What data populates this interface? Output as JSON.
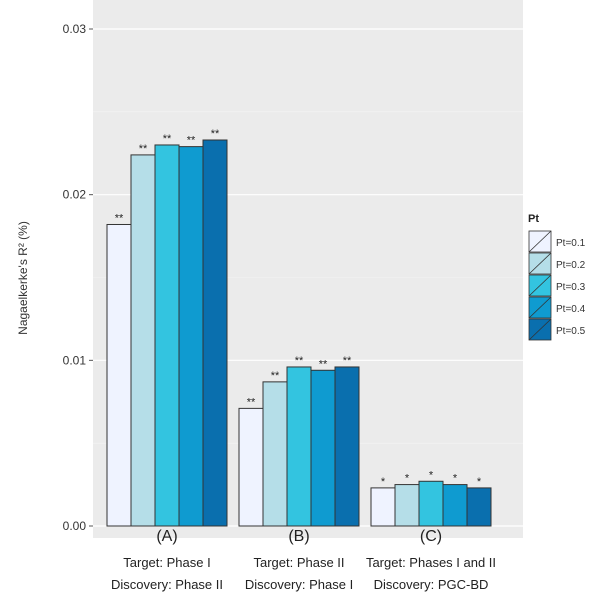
{
  "chart_data": {
    "type": "bar",
    "ylabel": "Nagaelkerke's R² (%)",
    "ylim": [
      0,
      0.031
    ],
    "yticks": [
      "0.00",
      "0.01",
      "0.02",
      "0.03"
    ],
    "ytick_values": [
      0,
      0.01,
      0.02,
      0.03
    ],
    "grid": true,
    "legend_position": "right",
    "categories": [
      {
        "letter": "(A)",
        "line1": "Target: Phase I",
        "line2": "Discovery: Phase II"
      },
      {
        "letter": "(B)",
        "line1": "Target: Phase II",
        "line2": "Discovery: Phase I"
      },
      {
        "letter": "(C)",
        "line1": "Target: Phases I and II",
        "line2": "Discovery: PGC-BD"
      }
    ],
    "legend_title": "Pt",
    "series": [
      {
        "name": "Pt=0.1",
        "color": "#eff3ff",
        "values": [
          0.0182,
          0.0071,
          0.0023
        ],
        "labels": [
          "**",
          "**",
          "*"
        ]
      },
      {
        "name": "Pt=0.2",
        "color": "#b5dee8",
        "values": [
          0.0224,
          0.0087,
          0.0025
        ],
        "labels": [
          "**",
          "**",
          "*"
        ]
      },
      {
        "name": "Pt=0.3",
        "color": "#33c4e0",
        "values": [
          0.023,
          0.0096,
          0.0027
        ],
        "labels": [
          "**",
          "**",
          "*"
        ]
      },
      {
        "name": "Pt=0.4",
        "color": "#0f9bd0",
        "values": [
          0.0229,
          0.0094,
          0.0025
        ],
        "labels": [
          "**",
          "**",
          "*"
        ]
      },
      {
        "name": "Pt=0.5",
        "color": "#0a6fae",
        "values": [
          0.0233,
          0.0096,
          0.0023
        ],
        "labels": [
          "**",
          "**",
          "*"
        ]
      }
    ]
  }
}
